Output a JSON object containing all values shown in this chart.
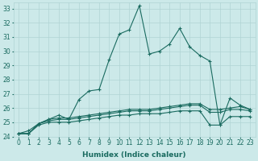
{
  "xlabel": "Humidex (Indice chaleur)",
  "ylabel": "",
  "background_color": "#cce9e9",
  "grid_color": "#b0d4d4",
  "line_color": "#1a6b60",
  "xlim": [
    -0.5,
    23.5
  ],
  "ylim": [
    24,
    33.4
  ],
  "x": [
    0,
    1,
    2,
    3,
    4,
    5,
    6,
    7,
    8,
    9,
    10,
    11,
    12,
    13,
    14,
    15,
    16,
    17,
    18,
    19,
    20,
    21,
    22,
    23
  ],
  "series1": [
    24.2,
    24.4,
    24.9,
    25.2,
    25.5,
    25.2,
    26.6,
    27.2,
    27.3,
    29.4,
    31.2,
    31.5,
    33.2,
    29.8,
    30.0,
    30.5,
    31.6,
    30.3,
    29.7,
    29.3,
    24.8,
    26.7,
    26.2,
    25.9
  ],
  "series2": [
    24.2,
    24.2,
    24.9,
    25.2,
    25.3,
    25.3,
    25.4,
    25.5,
    25.6,
    25.7,
    25.8,
    25.9,
    25.9,
    25.9,
    26.0,
    26.1,
    26.2,
    26.3,
    26.3,
    25.9,
    25.9,
    26.0,
    26.1,
    25.9
  ],
  "series3": [
    24.2,
    24.2,
    24.9,
    25.1,
    25.2,
    25.2,
    25.3,
    25.4,
    25.5,
    25.6,
    25.7,
    25.8,
    25.8,
    25.8,
    25.9,
    26.0,
    26.1,
    26.2,
    26.2,
    25.7,
    25.7,
    25.9,
    25.9,
    25.8
  ],
  "series4": [
    24.2,
    24.2,
    24.8,
    25.0,
    25.0,
    25.0,
    25.1,
    25.2,
    25.3,
    25.4,
    25.5,
    25.5,
    25.6,
    25.6,
    25.6,
    25.7,
    25.8,
    25.8,
    25.8,
    24.8,
    24.8,
    25.4,
    25.4,
    25.4
  ],
  "yticks": [
    24,
    25,
    26,
    27,
    28,
    29,
    30,
    31,
    32,
    33
  ],
  "xticks": [
    0,
    1,
    2,
    3,
    4,
    5,
    6,
    7,
    8,
    9,
    10,
    11,
    12,
    13,
    14,
    15,
    16,
    17,
    18,
    19,
    20,
    21,
    22,
    23
  ],
  "tick_fontsize": 5.5,
  "xlabel_fontsize": 6.5
}
